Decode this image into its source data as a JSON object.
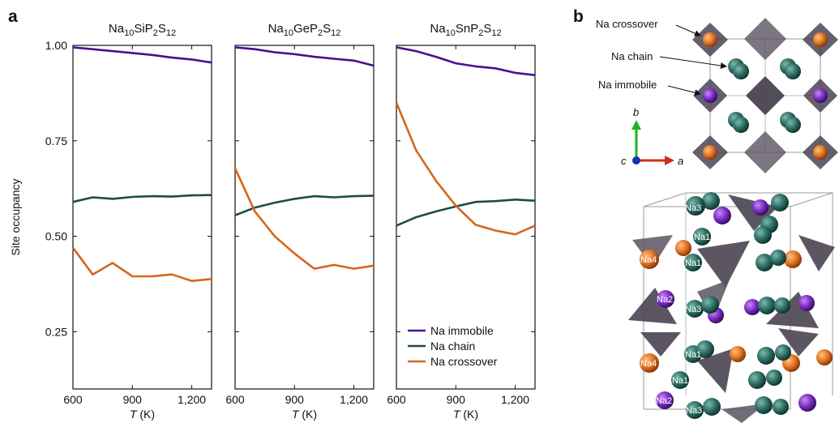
{
  "panel_labels": {
    "a": "a",
    "b": "b"
  },
  "colors": {
    "immobile": "#4B0F8C",
    "chain": "#1B4D47",
    "crossover": "#D7661A",
    "polyhedron": "#4A4452",
    "axis_b": "#1DB31D",
    "axis_a": "#D42A1E",
    "axis_c": "#1A2FB5"
  },
  "chart_data": {
    "type": "line",
    "ylabel": "Site occupancy",
    "xlabel_var": "T",
    "xlabel_unit": " (K)",
    "xlim": [
      600,
      1300
    ],
    "ylim": [
      0.1,
      1.0
    ],
    "xticks": [
      600,
      900,
      1200
    ],
    "xtick_labels": [
      "600",
      "900",
      "1,200"
    ],
    "yticks": [
      0.25,
      0.5,
      0.75,
      1.0
    ],
    "ytick_labels": [
      "0.25",
      "0.50",
      "0.75",
      "1.00"
    ],
    "legend": {
      "placement": "lower-right of third panel",
      "entries": [
        "Na immobile",
        "Na chain",
        "Na crossover"
      ]
    },
    "panels": [
      {
        "title_parts": [
          "Na",
          "10",
          "SiP",
          "2",
          "S",
          "12"
        ],
        "x": [
          600,
          700,
          800,
          900,
          1000,
          1100,
          1200,
          1300
        ],
        "series": [
          {
            "name": "Na immobile",
            "key": "immobile",
            "values": [
              0.995,
              0.99,
              0.985,
              0.98,
              0.975,
              0.968,
              0.963,
              0.955
            ]
          },
          {
            "name": "Na chain",
            "key": "chain",
            "values": [
              0.59,
              0.602,
              0.598,
              0.603,
              0.605,
              0.604,
              0.607,
              0.608
            ]
          },
          {
            "name": "Na crossover",
            "key": "crossover",
            "values": [
              0.47,
              0.4,
              0.43,
              0.395,
              0.395,
              0.4,
              0.383,
              0.388
            ]
          }
        ]
      },
      {
        "title_parts": [
          "Na",
          "10",
          "GeP",
          "2",
          "S",
          "12"
        ],
        "x": [
          600,
          700,
          800,
          900,
          1000,
          1100,
          1200,
          1300
        ],
        "series": [
          {
            "name": "Na immobile",
            "key": "immobile",
            "values": [
              0.995,
              0.99,
              0.982,
              0.977,
              0.97,
              0.965,
              0.96,
              0.947
            ]
          },
          {
            "name": "Na chain",
            "key": "chain",
            "values": [
              0.555,
              0.575,
              0.588,
              0.598,
              0.605,
              0.602,
              0.605,
              0.606
            ]
          },
          {
            "name": "Na crossover",
            "key": "crossover",
            "values": [
              0.678,
              0.565,
              0.5,
              0.455,
              0.415,
              0.425,
              0.415,
              0.423
            ]
          }
        ]
      },
      {
        "title_parts": [
          "Na",
          "10",
          "SnP",
          "2",
          "S",
          "12"
        ],
        "x": [
          600,
          700,
          800,
          900,
          1000,
          1100,
          1200,
          1300
        ],
        "series": [
          {
            "name": "Na immobile",
            "key": "immobile",
            "values": [
              0.995,
              0.985,
              0.97,
              0.953,
              0.945,
              0.94,
              0.928,
              0.922
            ]
          },
          {
            "name": "Na chain",
            "key": "chain",
            "values": [
              0.528,
              0.55,
              0.565,
              0.578,
              0.59,
              0.592,
              0.596,
              0.593
            ]
          },
          {
            "name": "Na crossover",
            "key": "crossover",
            "values": [
              0.85,
              0.725,
              0.645,
              0.58,
              0.53,
              0.515,
              0.505,
              0.528
            ]
          }
        ]
      }
    ]
  },
  "structure": {
    "top_labels": [
      "Na crossover",
      "Na chain",
      "Na immobile"
    ],
    "axes": {
      "b": "b",
      "a": "a",
      "c": "c"
    },
    "site_labels": [
      "Na3",
      "Na1",
      "Na4",
      "Na1",
      "Na2",
      "Na3",
      "Na4",
      "Na1",
      "Na1",
      "Na2",
      "Na3"
    ]
  }
}
